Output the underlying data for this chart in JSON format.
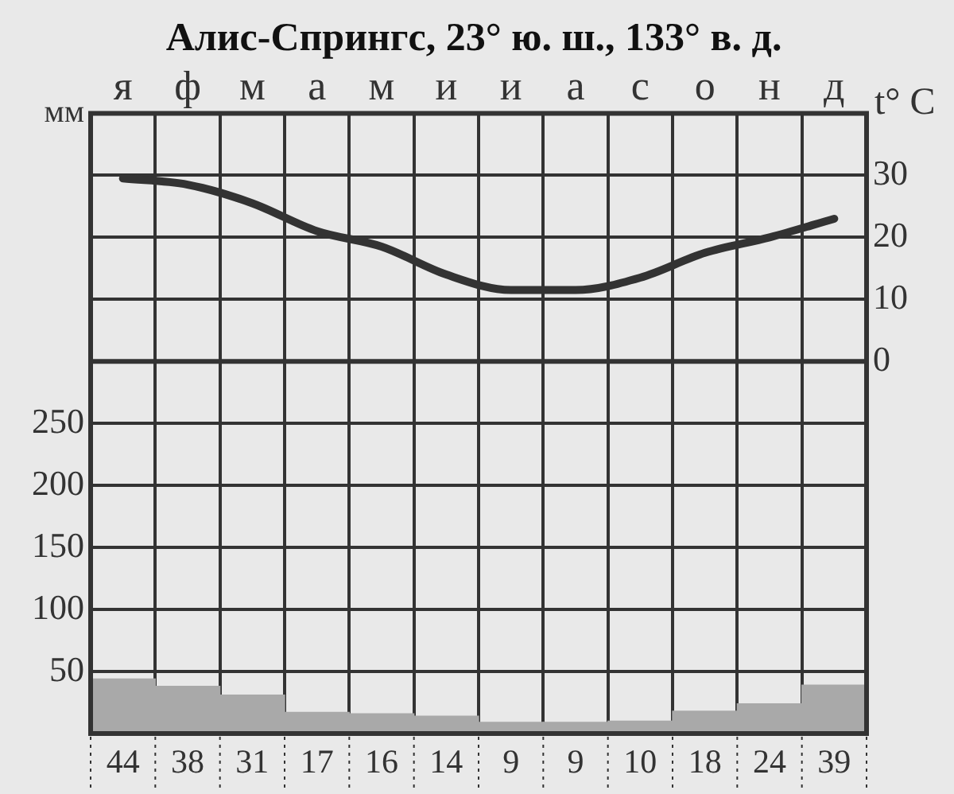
{
  "chart_data": {
    "type": "bar",
    "title": "Алис-Спрингс, 23° ю. ш., 133° в. д.",
    "ylabel": "мм",
    "y2label": "t° C",
    "categories": [
      "я",
      "ф",
      "м",
      "а",
      "м",
      "и",
      "и",
      "а",
      "с",
      "о",
      "н",
      "д"
    ],
    "series": [
      {
        "color": "#a9a9a9",
        "values": [
          44,
          38,
          31,
          17,
          16,
          14,
          9,
          9,
          10,
          18,
          24,
          39
        ],
        "value_labels": [
          "44",
          "38",
          "31",
          "17",
          "16",
          "14",
          "9",
          "9",
          "10",
          "18",
          "24",
          "39"
        ]
      },
      {
        "type": "line",
        "axis": "y2",
        "color": "#333333",
        "values": [
          29.5,
          28.5,
          25.5,
          21,
          18.5,
          14,
          11.5,
          11.5,
          13.5,
          17.5,
          20,
          23
        ]
      }
    ],
    "ylim": [
      0,
      500
    ],
    "yticks": [
      50,
      100,
      150,
      200,
      250
    ],
    "y2lim": [
      -60,
      40
    ],
    "y2ticks": [
      0,
      10,
      20,
      30
    ],
    "grid": true,
    "ref_lines": [
      {
        "axis": "y2",
        "value": 0
      }
    ]
  }
}
